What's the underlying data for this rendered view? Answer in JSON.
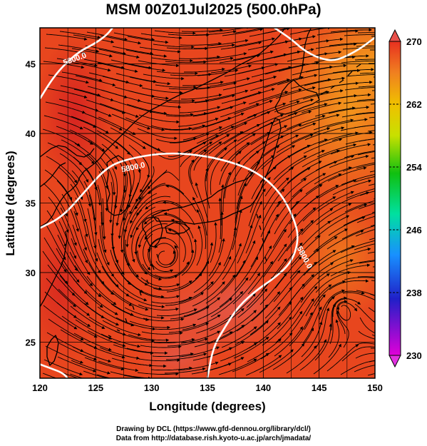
{
  "title": "MSM 00Z01Jul2025 (500.0hPa)",
  "chart_data": {
    "type": "map",
    "x_axis": {
      "label": "Longitude (degrees)",
      "range": [
        120,
        150
      ],
      "ticks": [
        "120",
        "125",
        "130",
        "135",
        "140",
        "145",
        "150"
      ]
    },
    "y_axis": {
      "label": "Latitude  (degrees)",
      "range": [
        22.4,
        47.6
      ],
      "ticks": [
        "25",
        "30",
        "35",
        "40",
        "45"
      ]
    },
    "grid": true,
    "colorbar": {
      "range": [
        230,
        270
      ],
      "ticks": [
        "230",
        "238",
        "246",
        "254",
        "262",
        "270"
      ],
      "placement": "right"
    },
    "contours": [
      {
        "label": "5800.0",
        "points": [
          [
            120,
            33.2
          ],
          [
            122,
            34.0
          ],
          [
            124,
            35.8
          ],
          [
            126,
            37.6
          ],
          [
            128,
            38.2
          ],
          [
            131,
            38.6
          ],
          [
            134,
            38.5
          ],
          [
            137,
            38.0
          ],
          [
            139.5,
            37.2
          ],
          [
            141.5,
            35.8
          ],
          [
            142.7,
            34.0
          ],
          [
            143.2,
            32.5
          ],
          [
            142.6,
            30.8
          ],
          [
            141,
            29.6
          ],
          [
            139.5,
            28.8
          ],
          [
            137.8,
            27.6
          ],
          [
            136.5,
            26.0
          ],
          [
            135.5,
            24.6
          ],
          [
            135,
            22.4
          ]
        ]
      },
      {
        "label": "5800.0",
        "points": [
          [
            120,
            42.5
          ],
          [
            121,
            43.8
          ],
          [
            122,
            44.8
          ],
          [
            123.5,
            45.9
          ],
          [
            125,
            46.5
          ],
          [
            126,
            47.1
          ],
          [
            126.5,
            47.6
          ]
        ]
      },
      {
        "label": "5800.0",
        "points": [
          [
            141,
            47.6
          ],
          [
            142.5,
            46.8
          ],
          [
            143.6,
            46.0
          ],
          [
            145,
            45.4
          ],
          [
            146.5,
            45.2
          ],
          [
            148.5,
            46.0
          ],
          [
            150,
            46.9
          ]
        ]
      },
      {
        "label": "",
        "points": [
          [
            120,
            23.4
          ],
          [
            121,
            23.1
          ],
          [
            122,
            22.8
          ],
          [
            122.5,
            22.4
          ]
        ]
      }
    ],
    "contour_label_positions": [
      [
        123.2,
        45.2
      ],
      [
        128.4,
        37.4
      ],
      [
        143.5,
        31.0
      ]
    ],
    "wind_center": [
      131.2,
      31.0
    ]
  },
  "footer": {
    "line1": "Drawing by DCL (https://www.gfd-dennou.org/library/dcl/)",
    "line2": "Data from http://database.rish.kyoto-u.ac.jp/arch/jmadata/"
  },
  "colors": {
    "field_main": "#e8401e",
    "field_high": "#d82a1e",
    "field_low": "#f07f1c",
    "contour": "#ffffff",
    "coast": "#000000"
  }
}
